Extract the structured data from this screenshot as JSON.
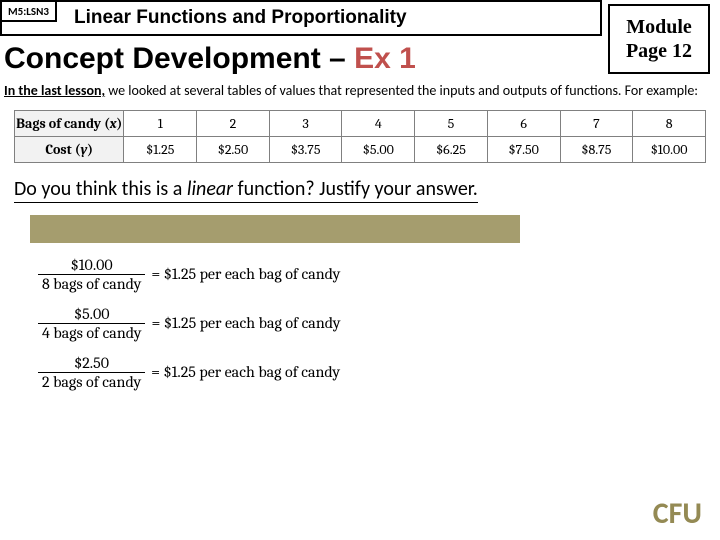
{
  "header": {
    "module_tag": "M5:LSN3",
    "lesson_title": "Linear Functions and Proportionality",
    "page_box_line1": "Module",
    "page_box_line2": "Page 12"
  },
  "concept": {
    "heading_main": "Concept Development – ",
    "heading_ex": "Ex 1"
  },
  "intro": {
    "lead": "In the last lesson,",
    "rest": " we looked at several tables of values that represented the inputs and outputs of functions.  For example:"
  },
  "table": {
    "row1_header": "Bags of candy (",
    "row1_var": "x",
    "row1_header_close": ")",
    "row2_header": "Cost (",
    "row2_var": "y",
    "row2_header_close": ")",
    "x_values": [
      "1",
      "2",
      "3",
      "4",
      "5",
      "6",
      "7",
      "8"
    ],
    "y_values": [
      "$1.25",
      "$2.50",
      "$3.75",
      "$5.00",
      "$6.25",
      "$7.50",
      "$8.75",
      "$10.00"
    ]
  },
  "question": {
    "part1": "Do you think this is a ",
    "linear_word": "linear",
    "part2": " function?  Justify your answer."
  },
  "ratios": [
    {
      "num": "$10.00",
      "den": "8 bags of candy",
      "result": " = $1.25 per each bag of candy"
    },
    {
      "num": "$5.00",
      "den": "4 bags of candy",
      "result": " = $1.25 per each bag of candy"
    },
    {
      "num": "$2.50",
      "den": "2 bags of candy",
      "result": " = $1.25 per each bag of candy"
    }
  ],
  "footer": {
    "cfu": "CFU"
  },
  "colors": {
    "ex_red": "#c0504d",
    "olive_bar": "#a59d6e",
    "cfu_color": "#948a54",
    "table_header_bg": "#f2f2f2",
    "table_border": "#808080"
  }
}
